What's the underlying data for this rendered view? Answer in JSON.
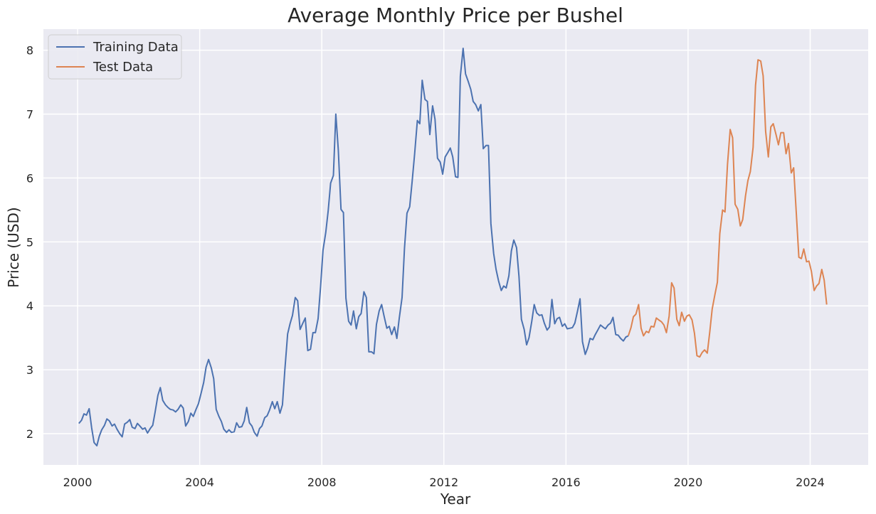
{
  "chart_data": {
    "type": "line",
    "title": "Average Monthly Price per Bushel",
    "xlabel": "Year",
    "ylabel": "Price (USD)",
    "xlim": [
      1998.88,
      2025.9
    ],
    "ylim": [
      1.51,
      8.33
    ],
    "xticks": [
      2000,
      2004,
      2008,
      2012,
      2016,
      2020,
      2024
    ],
    "yticks": [
      2,
      3,
      4,
      5,
      6,
      7,
      8
    ],
    "grid": true,
    "legend_position": "top-left",
    "background_color": "#EAEAF2",
    "series": [
      {
        "name": "Training Data",
        "color": "#4C72B0",
        "points": [
          [
            2000.04,
            2.16
          ],
          [
            2000.13,
            2.21
          ],
          [
            2000.21,
            2.31
          ],
          [
            2000.29,
            2.29
          ],
          [
            2000.38,
            2.39
          ],
          [
            2000.46,
            2.09
          ],
          [
            2000.54,
            1.86
          ],
          [
            2000.63,
            1.81
          ],
          [
            2000.71,
            1.96
          ],
          [
            2000.79,
            2.06
          ],
          [
            2000.88,
            2.13
          ],
          [
            2000.96,
            2.23
          ],
          [
            2001.04,
            2.2
          ],
          [
            2001.13,
            2.12
          ],
          [
            2001.21,
            2.15
          ],
          [
            2001.29,
            2.07
          ],
          [
            2001.38,
            2.0
          ],
          [
            2001.46,
            1.95
          ],
          [
            2001.54,
            2.15
          ],
          [
            2001.63,
            2.18
          ],
          [
            2001.71,
            2.22
          ],
          [
            2001.79,
            2.1
          ],
          [
            2001.88,
            2.08
          ],
          [
            2001.96,
            2.16
          ],
          [
            2002.04,
            2.12
          ],
          [
            2002.13,
            2.07
          ],
          [
            2002.21,
            2.09
          ],
          [
            2002.29,
            2.01
          ],
          [
            2002.38,
            2.08
          ],
          [
            2002.46,
            2.13
          ],
          [
            2002.54,
            2.34
          ],
          [
            2002.63,
            2.6
          ],
          [
            2002.71,
            2.72
          ],
          [
            2002.79,
            2.52
          ],
          [
            2002.88,
            2.45
          ],
          [
            2002.96,
            2.41
          ],
          [
            2003.04,
            2.38
          ],
          [
            2003.13,
            2.37
          ],
          [
            2003.21,
            2.34
          ],
          [
            2003.29,
            2.38
          ],
          [
            2003.38,
            2.45
          ],
          [
            2003.46,
            2.4
          ],
          [
            2003.54,
            2.12
          ],
          [
            2003.63,
            2.19
          ],
          [
            2003.71,
            2.32
          ],
          [
            2003.79,
            2.27
          ],
          [
            2003.88,
            2.38
          ],
          [
            2003.96,
            2.47
          ],
          [
            2004.04,
            2.62
          ],
          [
            2004.13,
            2.8
          ],
          [
            2004.21,
            3.04
          ],
          [
            2004.29,
            3.16
          ],
          [
            2004.38,
            3.03
          ],
          [
            2004.46,
            2.86
          ],
          [
            2004.54,
            2.38
          ],
          [
            2004.63,
            2.27
          ],
          [
            2004.71,
            2.19
          ],
          [
            2004.79,
            2.07
          ],
          [
            2004.88,
            2.02
          ],
          [
            2004.96,
            2.06
          ],
          [
            2005.04,
            2.02
          ],
          [
            2005.13,
            2.03
          ],
          [
            2005.21,
            2.17
          ],
          [
            2005.29,
            2.1
          ],
          [
            2005.38,
            2.11
          ],
          [
            2005.46,
            2.2
          ],
          [
            2005.54,
            2.41
          ],
          [
            2005.63,
            2.17
          ],
          [
            2005.71,
            2.12
          ],
          [
            2005.79,
            2.02
          ],
          [
            2005.88,
            1.96
          ],
          [
            2005.96,
            2.08
          ],
          [
            2006.04,
            2.12
          ],
          [
            2006.13,
            2.25
          ],
          [
            2006.21,
            2.28
          ],
          [
            2006.29,
            2.37
          ],
          [
            2006.38,
            2.5
          ],
          [
            2006.46,
            2.39
          ],
          [
            2006.54,
            2.5
          ],
          [
            2006.63,
            2.32
          ],
          [
            2006.71,
            2.45
          ],
          [
            2006.79,
            3.0
          ],
          [
            2006.88,
            3.56
          ],
          [
            2006.96,
            3.72
          ],
          [
            2007.04,
            3.85
          ],
          [
            2007.13,
            4.13
          ],
          [
            2007.21,
            4.08
          ],
          [
            2007.29,
            3.63
          ],
          [
            2007.38,
            3.73
          ],
          [
            2007.46,
            3.81
          ],
          [
            2007.54,
            3.3
          ],
          [
            2007.63,
            3.32
          ],
          [
            2007.71,
            3.58
          ],
          [
            2007.79,
            3.58
          ],
          [
            2007.88,
            3.8
          ],
          [
            2007.96,
            4.3
          ],
          [
            2008.04,
            4.87
          ],
          [
            2008.13,
            5.15
          ],
          [
            2008.21,
            5.49
          ],
          [
            2008.29,
            5.92
          ],
          [
            2008.38,
            6.04
          ],
          [
            2008.46,
            7.0
          ],
          [
            2008.54,
            6.44
          ],
          [
            2008.63,
            5.51
          ],
          [
            2008.71,
            5.46
          ],
          [
            2008.79,
            4.12
          ],
          [
            2008.88,
            3.76
          ],
          [
            2008.96,
            3.7
          ],
          [
            2009.04,
            3.92
          ],
          [
            2009.13,
            3.64
          ],
          [
            2009.21,
            3.83
          ],
          [
            2009.29,
            3.88
          ],
          [
            2009.38,
            4.22
          ],
          [
            2009.46,
            4.13
          ],
          [
            2009.54,
            3.28
          ],
          [
            2009.63,
            3.28
          ],
          [
            2009.71,
            3.25
          ],
          [
            2009.79,
            3.71
          ],
          [
            2009.88,
            3.92
          ],
          [
            2009.96,
            4.02
          ],
          [
            2010.04,
            3.84
          ],
          [
            2010.13,
            3.65
          ],
          [
            2010.21,
            3.68
          ],
          [
            2010.29,
            3.55
          ],
          [
            2010.38,
            3.67
          ],
          [
            2010.46,
            3.49
          ],
          [
            2010.54,
            3.81
          ],
          [
            2010.63,
            4.13
          ],
          [
            2010.71,
            4.9
          ],
          [
            2010.79,
            5.45
          ],
          [
            2010.88,
            5.55
          ],
          [
            2010.96,
            5.95
          ],
          [
            2011.04,
            6.37
          ],
          [
            2011.13,
            6.9
          ],
          [
            2011.21,
            6.85
          ],
          [
            2011.29,
            7.53
          ],
          [
            2011.38,
            7.23
          ],
          [
            2011.46,
            7.2
          ],
          [
            2011.54,
            6.68
          ],
          [
            2011.63,
            7.13
          ],
          [
            2011.71,
            6.92
          ],
          [
            2011.79,
            6.31
          ],
          [
            2011.88,
            6.25
          ],
          [
            2011.96,
            6.06
          ],
          [
            2012.04,
            6.33
          ],
          [
            2012.13,
            6.4
          ],
          [
            2012.21,
            6.47
          ],
          [
            2012.29,
            6.33
          ],
          [
            2012.38,
            6.02
          ],
          [
            2012.46,
            6.01
          ],
          [
            2012.54,
            7.59
          ],
          [
            2012.63,
            8.03
          ],
          [
            2012.71,
            7.63
          ],
          [
            2012.79,
            7.52
          ],
          [
            2012.88,
            7.39
          ],
          [
            2012.96,
            7.2
          ],
          [
            2013.04,
            7.15
          ],
          [
            2013.13,
            7.05
          ],
          [
            2013.21,
            7.15
          ],
          [
            2013.29,
            6.46
          ],
          [
            2013.38,
            6.51
          ],
          [
            2013.46,
            6.51
          ],
          [
            2013.54,
            5.29
          ],
          [
            2013.63,
            4.82
          ],
          [
            2013.71,
            4.57
          ],
          [
            2013.79,
            4.39
          ],
          [
            2013.88,
            4.24
          ],
          [
            2013.96,
            4.31
          ],
          [
            2014.04,
            4.28
          ],
          [
            2014.13,
            4.47
          ],
          [
            2014.21,
            4.86
          ],
          [
            2014.29,
            5.03
          ],
          [
            2014.38,
            4.91
          ],
          [
            2014.46,
            4.46
          ],
          [
            2014.54,
            3.79
          ],
          [
            2014.63,
            3.63
          ],
          [
            2014.71,
            3.39
          ],
          [
            2014.79,
            3.5
          ],
          [
            2014.88,
            3.76
          ],
          [
            2014.96,
            4.02
          ],
          [
            2015.04,
            3.89
          ],
          [
            2015.13,
            3.85
          ],
          [
            2015.21,
            3.86
          ],
          [
            2015.29,
            3.73
          ],
          [
            2015.38,
            3.62
          ],
          [
            2015.46,
            3.67
          ],
          [
            2015.54,
            4.1
          ],
          [
            2015.63,
            3.72
          ],
          [
            2015.71,
            3.8
          ],
          [
            2015.79,
            3.82
          ],
          [
            2015.88,
            3.68
          ],
          [
            2015.96,
            3.72
          ],
          [
            2016.04,
            3.64
          ],
          [
            2016.13,
            3.65
          ],
          [
            2016.21,
            3.66
          ],
          [
            2016.29,
            3.73
          ],
          [
            2016.38,
            3.92
          ],
          [
            2016.46,
            4.11
          ],
          [
            2016.54,
            3.44
          ],
          [
            2016.63,
            3.24
          ],
          [
            2016.71,
            3.34
          ],
          [
            2016.79,
            3.49
          ],
          [
            2016.88,
            3.47
          ],
          [
            2016.96,
            3.55
          ],
          [
            2017.04,
            3.62
          ],
          [
            2017.13,
            3.7
          ],
          [
            2017.21,
            3.67
          ],
          [
            2017.29,
            3.64
          ],
          [
            2017.38,
            3.7
          ],
          [
            2017.46,
            3.73
          ],
          [
            2017.54,
            3.82
          ],
          [
            2017.63,
            3.55
          ],
          [
            2017.71,
            3.54
          ],
          [
            2017.79,
            3.49
          ],
          [
            2017.88,
            3.45
          ],
          [
            2017.96,
            3.51
          ],
          [
            2018.04,
            3.53
          ]
        ]
      },
      {
        "name": "Test Data",
        "color": "#DD8452",
        "points": [
          [
            2018.04,
            3.53
          ],
          [
            2018.13,
            3.66
          ],
          [
            2018.21,
            3.83
          ],
          [
            2018.29,
            3.87
          ],
          [
            2018.38,
            4.02
          ],
          [
            2018.46,
            3.65
          ],
          [
            2018.54,
            3.53
          ],
          [
            2018.63,
            3.6
          ],
          [
            2018.71,
            3.58
          ],
          [
            2018.79,
            3.68
          ],
          [
            2018.88,
            3.67
          ],
          [
            2018.96,
            3.81
          ],
          [
            2019.04,
            3.78
          ],
          [
            2019.13,
            3.75
          ],
          [
            2019.21,
            3.7
          ],
          [
            2019.29,
            3.58
          ],
          [
            2019.38,
            3.84
          ],
          [
            2019.46,
            4.36
          ],
          [
            2019.54,
            4.28
          ],
          [
            2019.63,
            3.79
          ],
          [
            2019.71,
            3.69
          ],
          [
            2019.79,
            3.9
          ],
          [
            2019.88,
            3.76
          ],
          [
            2019.96,
            3.84
          ],
          [
            2020.04,
            3.86
          ],
          [
            2020.13,
            3.78
          ],
          [
            2020.21,
            3.57
          ],
          [
            2020.29,
            3.22
          ],
          [
            2020.38,
            3.2
          ],
          [
            2020.46,
            3.27
          ],
          [
            2020.54,
            3.31
          ],
          [
            2020.63,
            3.26
          ],
          [
            2020.71,
            3.59
          ],
          [
            2020.79,
            3.95
          ],
          [
            2020.88,
            4.18
          ],
          [
            2020.96,
            4.37
          ],
          [
            2021.04,
            5.13
          ],
          [
            2021.13,
            5.5
          ],
          [
            2021.21,
            5.47
          ],
          [
            2021.29,
            6.21
          ],
          [
            2021.38,
            6.76
          ],
          [
            2021.46,
            6.63
          ],
          [
            2021.54,
            5.59
          ],
          [
            2021.63,
            5.51
          ],
          [
            2021.71,
            5.25
          ],
          [
            2021.79,
            5.35
          ],
          [
            2021.88,
            5.72
          ],
          [
            2021.96,
            5.96
          ],
          [
            2022.04,
            6.1
          ],
          [
            2022.13,
            6.48
          ],
          [
            2022.21,
            7.45
          ],
          [
            2022.29,
            7.85
          ],
          [
            2022.38,
            7.83
          ],
          [
            2022.46,
            7.6
          ],
          [
            2022.54,
            6.73
          ],
          [
            2022.63,
            6.33
          ],
          [
            2022.71,
            6.8
          ],
          [
            2022.79,
            6.85
          ],
          [
            2022.88,
            6.68
          ],
          [
            2022.96,
            6.52
          ],
          [
            2023.04,
            6.71
          ],
          [
            2023.13,
            6.71
          ],
          [
            2023.21,
            6.38
          ],
          [
            2023.29,
            6.54
          ],
          [
            2023.38,
            6.08
          ],
          [
            2023.46,
            6.16
          ],
          [
            2023.54,
            5.49
          ],
          [
            2023.63,
            4.76
          ],
          [
            2023.71,
            4.74
          ],
          [
            2023.79,
            4.89
          ],
          [
            2023.88,
            4.69
          ],
          [
            2023.96,
            4.7
          ],
          [
            2024.04,
            4.54
          ],
          [
            2024.13,
            4.24
          ],
          [
            2024.21,
            4.31
          ],
          [
            2024.29,
            4.35
          ],
          [
            2024.38,
            4.57
          ],
          [
            2024.46,
            4.4
          ],
          [
            2024.54,
            4.02
          ]
        ]
      }
    ]
  }
}
